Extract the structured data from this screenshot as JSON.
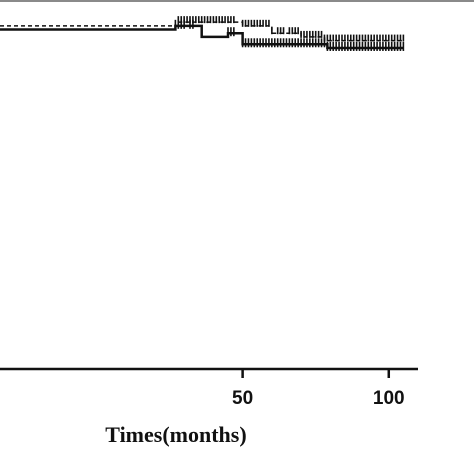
{
  "chart_data": {
    "type": "line",
    "subtype": "kaplan-meier survival curve",
    "xlabel": "Times(months)",
    "x_ticks": [
      50,
      100
    ],
    "x_tick_labels": [
      "50",
      "100"
    ],
    "xlim": [
      -33,
      110
    ],
    "ylim": [
      0,
      1.0
    ],
    "grid": false,
    "legend": "none",
    "series": [
      {
        "style": "dashed",
        "color": "#111111",
        "x": [
          -33,
          28,
          48,
          50,
          58,
          60,
          70,
          78,
          105
        ],
        "y": [
          0.93,
          0.94,
          0.94,
          0.93,
          0.93,
          0.91,
          0.9,
          0.89,
          0.89
        ],
        "censor_x": [
          28,
          29,
          30,
          31,
          32,
          33,
          34,
          35,
          36,
          37,
          38,
          39,
          40,
          41,
          42,
          43,
          44,
          45,
          46,
          47,
          50,
          51,
          52,
          53,
          54,
          55,
          56,
          57,
          58,
          59,
          60,
          62,
          63,
          64,
          66,
          67,
          68,
          69,
          70,
          71,
          72,
          73,
          74,
          75,
          76,
          77,
          78,
          79,
          80,
          81,
          82,
          83,
          84,
          85,
          86,
          87,
          88,
          89,
          90,
          91,
          92,
          93,
          94,
          95,
          96,
          97,
          98,
          99,
          100,
          101,
          102,
          103,
          104,
          105
        ]
      },
      {
        "style": "solid",
        "color": "#111111",
        "x": [
          -33,
          27,
          36,
          45,
          50,
          79,
          105
        ],
        "y": [
          0.92,
          0.93,
          0.9,
          0.91,
          0.88,
          0.87,
          0.87
        ],
        "censor_x": [
          27,
          28,
          29,
          30,
          32,
          33,
          45,
          46,
          47,
          50,
          51,
          52,
          53,
          54,
          55,
          56,
          57,
          58,
          59,
          60,
          61,
          62,
          63,
          64,
          65,
          66,
          67,
          68,
          69,
          70,
          71,
          72,
          73,
          74,
          75,
          76,
          77,
          78,
          79,
          80,
          81,
          82,
          83,
          84,
          85,
          86,
          87,
          88,
          89,
          90,
          91,
          92,
          93,
          94,
          95,
          96,
          97,
          98,
          99,
          100,
          101,
          102,
          103,
          104,
          105
        ]
      }
    ]
  }
}
